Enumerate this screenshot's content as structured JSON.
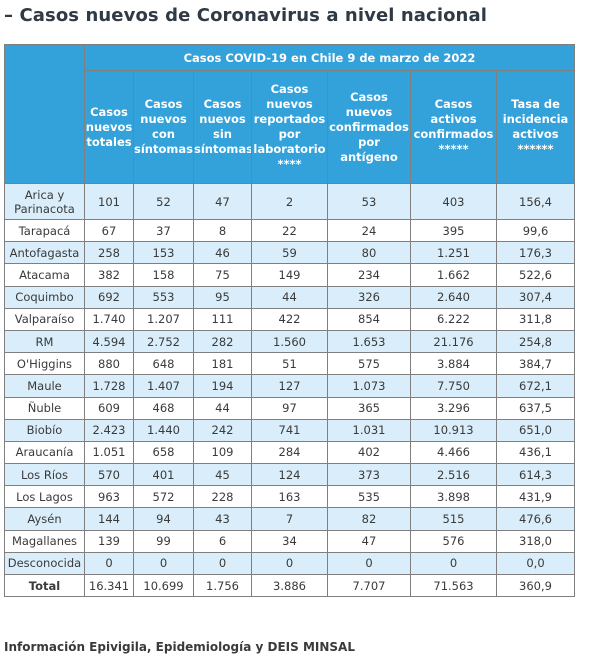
{
  "page_title": "– Casos nuevos de Coronavirus a nivel nacional",
  "table": {
    "caption": "Casos COVID-19 en Chile 9 de marzo de 2022",
    "headers": [
      "Casos nuevos totales",
      "Casos nuevos con síntomas",
      "Casos nuevos sin síntomas",
      "Casos nuevos reportados por laboratorio ****",
      "Casos nuevos confirmados por antígeno",
      "Casos activos confirmados *****",
      "Tasa de incidencia activos ******"
    ],
    "rows": [
      {
        "region": "Arica y Parinacota",
        "values": [
          "101",
          "52",
          "47",
          "2",
          "53",
          "403",
          "156,4"
        ]
      },
      {
        "region": "Tarapacá",
        "values": [
          "67",
          "37",
          "8",
          "22",
          "24",
          "395",
          "99,6"
        ]
      },
      {
        "region": "Antofagasta",
        "values": [
          "258",
          "153",
          "46",
          "59",
          "80",
          "1.251",
          "176,3"
        ]
      },
      {
        "region": "Atacama",
        "values": [
          "382",
          "158",
          "75",
          "149",
          "234",
          "1.662",
          "522,6"
        ]
      },
      {
        "region": "Coquimbo",
        "values": [
          "692",
          "553",
          "95",
          "44",
          "326",
          "2.640",
          "307,4"
        ]
      },
      {
        "region": "Valparaíso",
        "values": [
          "1.740",
          "1.207",
          "111",
          "422",
          "854",
          "6.222",
          "311,8"
        ]
      },
      {
        "region": "RM",
        "values": [
          "4.594",
          "2.752",
          "282",
          "1.560",
          "1.653",
          "21.176",
          "254,8"
        ]
      },
      {
        "region": "O'Higgins",
        "values": [
          "880",
          "648",
          "181",
          "51",
          "575",
          "3.884",
          "384,7"
        ]
      },
      {
        "region": "Maule",
        "values": [
          "1.728",
          "1.407",
          "194",
          "127",
          "1.073",
          "7.750",
          "672,1"
        ]
      },
      {
        "region": "Ñuble",
        "values": [
          "609",
          "468",
          "44",
          "97",
          "365",
          "3.296",
          "637,5"
        ]
      },
      {
        "region": "Biobío",
        "values": [
          "2.423",
          "1.440",
          "242",
          "741",
          "1.031",
          "10.913",
          "651,0"
        ]
      },
      {
        "region": "Araucanía",
        "values": [
          "1.051",
          "658",
          "109",
          "284",
          "402",
          "4.466",
          "436,1"
        ]
      },
      {
        "region": "Los Ríos",
        "values": [
          "570",
          "401",
          "45",
          "124",
          "373",
          "2.516",
          "614,3"
        ]
      },
      {
        "region": "Los Lagos",
        "values": [
          "963",
          "572",
          "228",
          "163",
          "535",
          "3.898",
          "431,9"
        ]
      },
      {
        "region": "Aysén",
        "values": [
          "144",
          "94",
          "43",
          "7",
          "82",
          "515",
          "476,6"
        ]
      },
      {
        "region": "Magallanes",
        "values": [
          "139",
          "99",
          "6",
          "34",
          "47",
          "576",
          "318,0"
        ]
      },
      {
        "region": "Desconocida",
        "values": [
          "0",
          "0",
          "0",
          "0",
          "0",
          "0",
          "0,0"
        ]
      }
    ],
    "total": {
      "label": "Total",
      "values": [
        "16.341",
        "10.699",
        "1.756",
        "3.886",
        "7.707",
        "71.563",
        "360,9"
      ]
    }
  },
  "footer": "Información Epivigila, Epidemiología y DEIS MINSAL"
}
